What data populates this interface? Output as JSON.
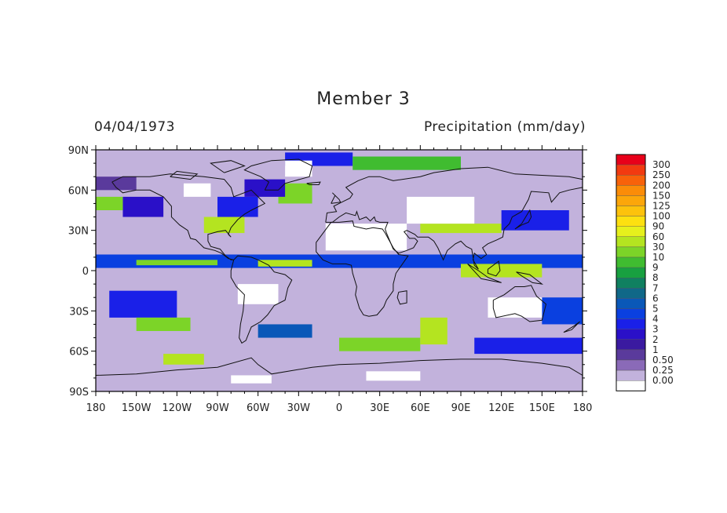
{
  "title": "Member 3",
  "date": "04/04/1973",
  "variable": "Precipitation (mm/day)",
  "map": {
    "lon_range": [
      -180,
      180
    ],
    "lat_range": [
      -90,
      90
    ],
    "x_ticks": [
      {
        "lon": -180,
        "label": "180"
      },
      {
        "lon": -150,
        "label": "150W"
      },
      {
        "lon": -120,
        "label": "120W"
      },
      {
        "lon": -90,
        "label": "90W"
      },
      {
        "lon": -60,
        "label": "60W"
      },
      {
        "lon": -30,
        "label": "30W"
      },
      {
        "lon": 0,
        "label": "0"
      },
      {
        "lon": 30,
        "label": "30E"
      },
      {
        "lon": 60,
        "label": "60E"
      },
      {
        "lon": 90,
        "label": "90E"
      },
      {
        "lon": 120,
        "label": "120E"
      },
      {
        "lon": 150,
        "label": "150E"
      },
      {
        "lon": 180,
        "label": "180"
      }
    ],
    "y_ticks": [
      {
        "lat": 90,
        "label": "90N"
      },
      {
        "lat": 60,
        "label": "60N"
      },
      {
        "lat": 30,
        "label": "30N"
      },
      {
        "lat": 0,
        "label": "0"
      },
      {
        "lat": -30,
        "label": "30S"
      },
      {
        "lat": -60,
        "label": "60S"
      },
      {
        "lat": -90,
        "label": "90S"
      }
    ]
  },
  "colorbar": [
    {
      "label": "300",
      "color": "#e8001a"
    },
    {
      "label": "250",
      "color": "#f23a10"
    },
    {
      "label": "200",
      "color": "#f8620a"
    },
    {
      "label": "150",
      "color": "#fb8c08"
    },
    {
      "label": "125",
      "color": "#fca60a"
    },
    {
      "label": "100",
      "color": "#fdc20c"
    },
    {
      "label": "90",
      "color": "#fde010"
    },
    {
      "label": "60",
      "color": "#e6f01c"
    },
    {
      "label": "30",
      "color": "#b4e420"
    },
    {
      "label": "10",
      "color": "#7cd428"
    },
    {
      "label": "9",
      "color": "#40bc30"
    },
    {
      "label": "8",
      "color": "#18a040"
    },
    {
      "label": "7",
      "color": "#108060"
    },
    {
      "label": "6",
      "color": "#106888"
    },
    {
      "label": "5",
      "color": "#0a58b8"
    },
    {
      "label": "4",
      "color": "#0a40e0"
    },
    {
      "label": "3",
      "color": "#1a20e8"
    },
    {
      "label": "2",
      "color": "#2a10c8"
    },
    {
      "label": "1",
      "color": "#3a1aa0"
    },
    {
      "label": "0.50",
      "color": "#5a3a9c"
    },
    {
      "label": "0.25",
      "color": "#8a6ab8"
    },
    {
      "label": "0.00",
      "color": "#c2b2dc"
    },
    {
      "label": "",
      "color": "#ffffff"
    }
  ],
  "precip_regions": [
    {
      "lon": [
        -180,
        -150
      ],
      "lat": [
        60,
        70
      ],
      "class": "0.50"
    },
    {
      "lon": [
        -160,
        -130
      ],
      "lat": [
        40,
        55
      ],
      "class": "2"
    },
    {
      "lon": [
        -180,
        -160
      ],
      "lat": [
        45,
        55
      ],
      "class": "10"
    },
    {
      "lon": [
        -100,
        -70
      ],
      "lat": [
        28,
        40
      ],
      "class": "30"
    },
    {
      "lon": [
        -90,
        -60
      ],
      "lat": [
        40,
        55
      ],
      "class": "3"
    },
    {
      "lon": [
        -45,
        -20
      ],
      "lat": [
        50,
        65
      ],
      "class": "10"
    },
    {
      "lon": [
        -70,
        -40
      ],
      "lat": [
        55,
        68
      ],
      "class": "2"
    },
    {
      "lon": [
        -40,
        10
      ],
      "lat": [
        78,
        88
      ],
      "class": "3"
    },
    {
      "lon": [
        10,
        90
      ],
      "lat": [
        75,
        85
      ],
      "class": "9"
    },
    {
      "lon": [
        60,
        120
      ],
      "lat": [
        28,
        35
      ],
      "class": "30"
    },
    {
      "lon": [
        120,
        170
      ],
      "lat": [
        30,
        45
      ],
      "class": "3"
    },
    {
      "lon": [
        -180,
        180
      ],
      "lat": [
        2,
        12
      ],
      "class": "4"
    },
    {
      "lon": [
        -150,
        -90
      ],
      "lat": [
        4,
        8
      ],
      "class": "10"
    },
    {
      "lon": [
        -60,
        -20
      ],
      "lat": [
        3,
        8
      ],
      "class": "30"
    },
    {
      "lon": [
        90,
        150
      ],
      "lat": [
        -5,
        5
      ],
      "class": "30"
    },
    {
      "lon": [
        -170,
        -120
      ],
      "lat": [
        -15,
        -35
      ],
      "class": "3"
    },
    {
      "lon": [
        -150,
        -110
      ],
      "lat": [
        -35,
        -45
      ],
      "class": "10"
    },
    {
      "lon": [
        -130,
        -100
      ],
      "lat": [
        -62,
        -70
      ],
      "class": "30"
    },
    {
      "lon": [
        -60,
        -20
      ],
      "lat": [
        -40,
        -50
      ],
      "class": "5"
    },
    {
      "lon": [
        0,
        60
      ],
      "lat": [
        -50,
        -60
      ],
      "class": "10"
    },
    {
      "lon": [
        60,
        80
      ],
      "lat": [
        -35,
        -55
      ],
      "class": "30"
    },
    {
      "lon": [
        100,
        180
      ],
      "lat": [
        -50,
        -62
      ],
      "class": "3"
    },
    {
      "lon": [
        150,
        180
      ],
      "lat": [
        -20,
        -40
      ],
      "class": "4"
    }
  ],
  "dry_regions": [
    {
      "lon": [
        -10,
        50
      ],
      "lat": [
        15,
        35
      ]
    },
    {
      "lon": [
        50,
        100
      ],
      "lat": [
        35,
        55
      ]
    },
    {
      "lon": [
        110,
        150
      ],
      "lat": [
        -20,
        -35
      ]
    },
    {
      "lon": [
        -40,
        -20
      ],
      "lat": [
        70,
        82
      ]
    },
    {
      "lon": [
        -115,
        -95
      ],
      "lat": [
        55,
        65
      ]
    },
    {
      "lon": [
        -75,
        -45
      ],
      "lat": [
        -10,
        -25
      ]
    },
    {
      "lon": [
        20,
        60
      ],
      "lat": [
        -75,
        -82
      ]
    },
    {
      "lon": [
        -80,
        -50
      ],
      "lat": [
        -78,
        -84
      ]
    }
  ]
}
